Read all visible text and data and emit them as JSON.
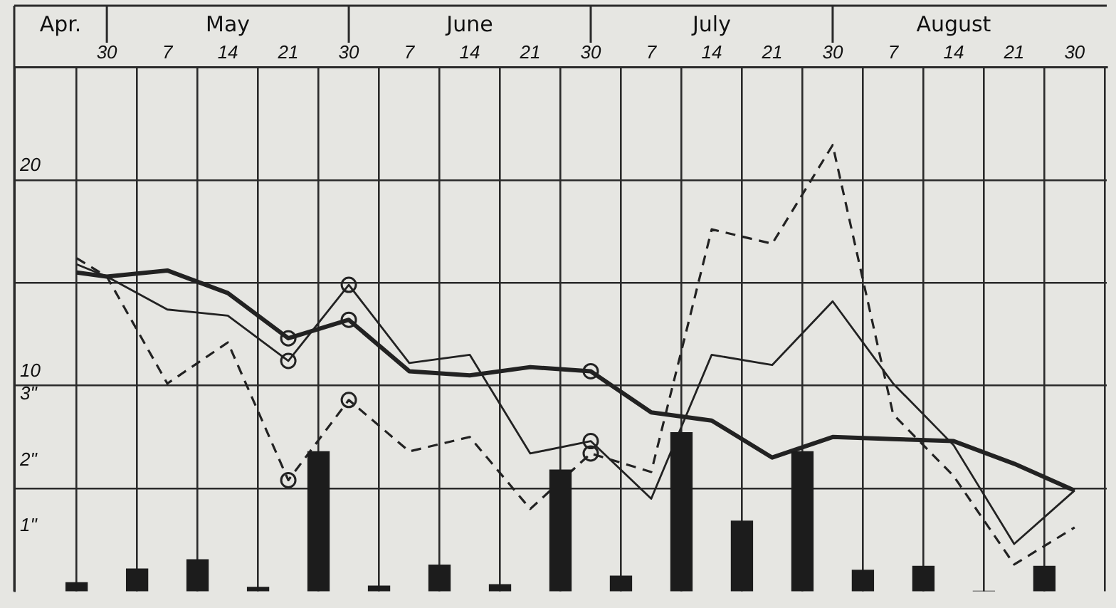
{
  "chart_data": {
    "type": "line",
    "categories": [
      null,
      "30",
      null,
      "7",
      null,
      "14",
      null,
      "21",
      null,
      "30",
      null,
      "7",
      null,
      "14",
      null,
      "21",
      null,
      "30",
      null,
      "7",
      null,
      "14",
      null,
      "21",
      null,
      "30",
      null,
      "7",
      null,
      "14",
      null,
      "21",
      null,
      "30"
    ],
    "annotations": [
      "Apr.",
      "May",
      "June",
      "July",
      "August"
    ],
    "ylim": [
      0,
      25.5
    ],
    "yticks": [
      {
        "value": 5,
        "label": null
      },
      10,
      {
        "value": 15,
        "label": null
      },
      20
    ],
    "y2lim": [
      0,
      8
    ],
    "y2ticks": [
      {
        "value": 1,
        "label": "1\""
      },
      {
        "value": 2,
        "label": "2\""
      },
      {
        "value": 3,
        "label": "3\""
      }
    ],
    "grid": true,
    "legend": false,
    "series": [
      {
        "type": "bar",
        "axis": "y2",
        "color": "#1c1c1c",
        "values": [
          0.13,
          null,
          0.34,
          null,
          0.48,
          null,
          0.06,
          null,
          2.13,
          null,
          0.08,
          null,
          0.4,
          null,
          0.1,
          null,
          1.85,
          null,
          0.23,
          null,
          2.42,
          null,
          1.07,
          null,
          2.13,
          null,
          0.32,
          null,
          0.38,
          null,
          0,
          null,
          0.38,
          null
        ]
      },
      {
        "color": "#222222",
        "line_style": "solid",
        "marker": "none",
        "values": [
          15.5,
          15.3,
          null,
          15.6,
          null,
          14.5,
          null,
          12.3,
          null,
          13.2,
          null,
          10.7,
          null,
          10.5,
          null,
          10.9,
          null,
          10.7,
          null,
          8.7,
          null,
          8.3,
          null,
          6.5,
          null,
          7.5,
          null,
          7.4,
          null,
          7.3,
          null,
          6.2,
          null,
          4.9
        ]
      },
      {
        "color": "#222222",
        "line_style": "solid",
        "marker": "none",
        "values": [
          15.9,
          15.3,
          null,
          13.7,
          null,
          13.4,
          null,
          11.2,
          null,
          14.9,
          null,
          11.1,
          null,
          11.5,
          null,
          6.7,
          null,
          7.3,
          null,
          4.5,
          null,
          11.5,
          null,
          11.0,
          null,
          14.1,
          null,
          10.1,
          null,
          7.1,
          null,
          2.3,
          null,
          4.9
        ]
      },
      {
        "color": "#222222",
        "line_style": "dashed",
        "marker": "none",
        "values": [
          16.2,
          15.3,
          null,
          10.1,
          null,
          12.1,
          null,
          5.4,
          null,
          9.3,
          null,
          6.8,
          null,
          7.5,
          null,
          4.0,
          null,
          6.7,
          null,
          5.8,
          null,
          17.6,
          null,
          16.9,
          null,
          21.7,
          null,
          8.6,
          null,
          5.6,
          null,
          1.3,
          null,
          3.1
        ]
      },
      {
        "type": "scatter",
        "color": "#222222",
        "marker": "circle",
        "values": [
          null,
          null,
          null,
          null,
          null,
          null,
          null,
          12.3,
          null,
          13.2,
          null,
          null,
          null,
          null,
          null,
          null,
          null,
          10.7,
          null,
          null,
          null,
          null,
          null,
          null,
          null,
          null,
          null,
          null,
          null,
          null,
          null,
          null,
          null,
          null
        ]
      },
      {
        "type": "scatter",
        "color": "#222222",
        "marker": "circle",
        "values": [
          null,
          null,
          null,
          null,
          null,
          null,
          null,
          11.2,
          null,
          14.9,
          null,
          null,
          null,
          null,
          null,
          null,
          null,
          7.3,
          null,
          null,
          null,
          null,
          null,
          null,
          null,
          null,
          null,
          null,
          null,
          null,
          null,
          null,
          null,
          null
        ]
      },
      {
        "type": "scatter",
        "color": "#222222",
        "marker": "circle",
        "values": [
          null,
          null,
          null,
          null,
          null,
          null,
          null,
          5.4,
          null,
          9.3,
          null,
          null,
          null,
          null,
          null,
          null,
          null,
          6.7,
          null,
          null,
          null,
          null,
          null,
          null,
          null,
          null,
          null,
          null,
          null,
          null,
          null,
          null,
          null,
          null
        ]
      }
    ]
  }
}
